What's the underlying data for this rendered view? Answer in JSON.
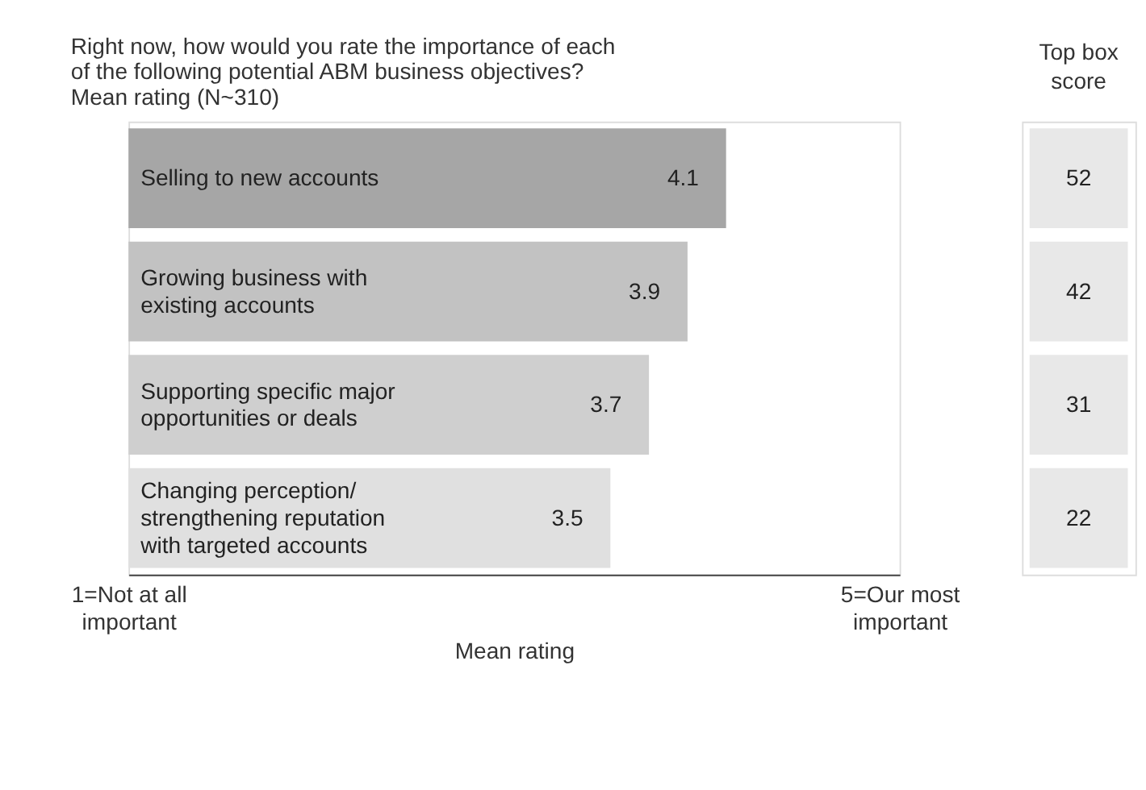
{
  "chart_data": [
    {
      "type": "bar",
      "orientation": "horizontal",
      "title": "Right now, how would you rate the importance of each of the following potential ABM business objectives?",
      "subtitle": "Mean rating (N~310)",
      "xlabel": "Mean rating",
      "categories": [
        "Selling to new accounts",
        "Growing business with existing accounts",
        "Supporting specific major opportunities or deals",
        "Changing perception/ strengthening reputation with targeted accounts"
      ],
      "base": [
        1,
        1,
        1,
        1
      ],
      "values": [
        3.1,
        2.9,
        2.7,
        2.5
      ],
      "value_labels": [
        "4.1",
        "3.9",
        "3.7",
        "3.5"
      ],
      "colors": [
        "#a6a6a6",
        "#c2c2c2",
        "#cfcfcf",
        "#e0e0e0"
      ],
      "xlim": [
        1,
        5
      ],
      "xticks": [
        {
          "value": 1,
          "label": "1=Not at all important"
        },
        {
          "value": 5,
          "label": "5=Our most important"
        }
      ]
    },
    {
      "type": "other",
      "title": "Top box score",
      "values": [
        52,
        42,
        31,
        22
      ],
      "color": "#e8e8e8",
      "data_labels": true
    }
  ]
}
